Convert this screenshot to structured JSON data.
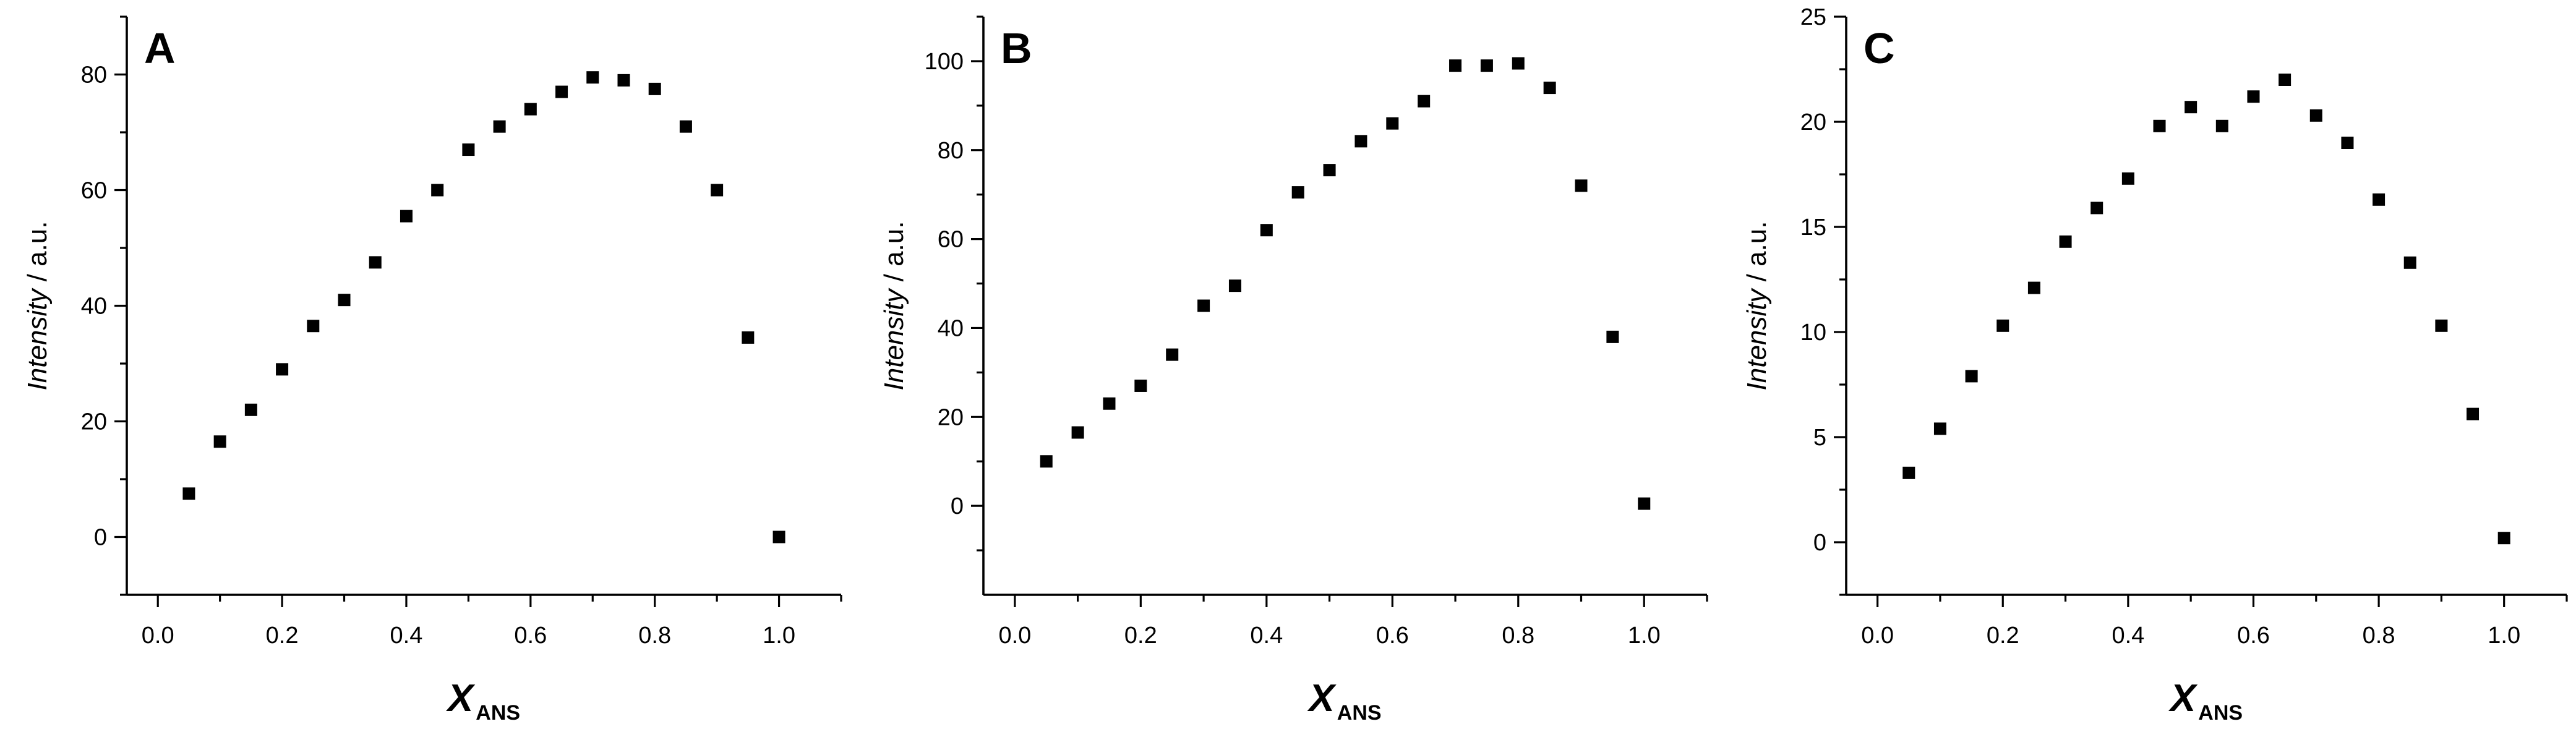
{
  "chart_data": [
    {
      "type": "scatter",
      "panel_label": "A",
      "ylabel_italic": "Intensity",
      "ylabel_rest": " / a.u.",
      "xlabel_main": "X",
      "xlabel_sub": "ANS",
      "xlim": [
        -0.05,
        1.1
      ],
      "ylim": [
        -10,
        90
      ],
      "xticks": [
        0.0,
        0.2,
        0.4,
        0.6,
        0.8,
        1.0
      ],
      "xtick_labels": [
        "0.0",
        "0.2",
        "0.4",
        "0.6",
        "0.8",
        "1.0"
      ],
      "yticks": [
        0,
        20,
        40,
        60,
        80
      ],
      "ytick_labels": [
        "0",
        "20",
        "40",
        "60",
        "80"
      ],
      "x": [
        0.05,
        0.1,
        0.15,
        0.2,
        0.25,
        0.3,
        0.35,
        0.4,
        0.45,
        0.5,
        0.55,
        0.6,
        0.65,
        0.7,
        0.75,
        0.8,
        0.85,
        0.9,
        0.95,
        1.0
      ],
      "y": [
        7.5,
        16.5,
        22,
        29,
        36.5,
        41,
        47.5,
        55.5,
        60,
        67,
        71,
        74,
        77,
        79.5,
        79,
        77.5,
        71,
        60,
        34.5,
        0
      ],
      "marker_color": "#000000",
      "grid": false
    },
    {
      "type": "scatter",
      "panel_label": "B",
      "ylabel_italic": "Intensity",
      "ylabel_rest": " / a.u.",
      "xlabel_main": "X",
      "xlabel_sub": "ANS",
      "xlim": [
        -0.05,
        1.1
      ],
      "ylim": [
        -20,
        110
      ],
      "xticks": [
        0.0,
        0.2,
        0.4,
        0.6,
        0.8,
        1.0
      ],
      "xtick_labels": [
        "0.0",
        "0.2",
        "0.4",
        "0.6",
        "0.8",
        "1.0"
      ],
      "yticks": [
        0,
        20,
        40,
        60,
        80,
        100
      ],
      "ytick_labels": [
        "0",
        "20",
        "40",
        "60",
        "80",
        "100"
      ],
      "x": [
        0.05,
        0.1,
        0.15,
        0.2,
        0.25,
        0.3,
        0.35,
        0.4,
        0.45,
        0.5,
        0.55,
        0.6,
        0.65,
        0.7,
        0.75,
        0.8,
        0.85,
        0.9,
        0.95,
        1.0
      ],
      "y": [
        10,
        16.5,
        23,
        27,
        34,
        45,
        49.5,
        62,
        70.5,
        75.5,
        82,
        86,
        91,
        99,
        99,
        99.5,
        94,
        72,
        38,
        0.5
      ],
      "marker_color": "#000000",
      "grid": false
    },
    {
      "type": "scatter",
      "panel_label": "C",
      "ylabel_italic": "Intensity",
      "ylabel_rest": " / a.u.",
      "xlabel_main": "X",
      "xlabel_sub": "ANS",
      "xlim": [
        -0.05,
        1.1
      ],
      "ylim": [
        -2.5,
        25
      ],
      "xticks": [
        0.0,
        0.2,
        0.4,
        0.6,
        0.8,
        1.0
      ],
      "xtick_labels": [
        "0.0",
        "0.2",
        "0.4",
        "0.6",
        "0.8",
        "1.0"
      ],
      "yticks": [
        0,
        5,
        10,
        15,
        20,
        25
      ],
      "ytick_labels": [
        "0",
        "5",
        "10",
        "15",
        "20",
        "25"
      ],
      "x": [
        0.05,
        0.1,
        0.15,
        0.2,
        0.25,
        0.3,
        0.35,
        0.4,
        0.45,
        0.5,
        0.55,
        0.6,
        0.65,
        0.7,
        0.75,
        0.8,
        0.85,
        0.9,
        0.95,
        1.0
      ],
      "y": [
        3.3,
        5.4,
        7.9,
        10.3,
        12.1,
        14.3,
        15.9,
        17.3,
        19.8,
        20.7,
        19.8,
        21.2,
        22.0,
        20.3,
        19.0,
        16.3,
        13.3,
        10.3,
        6.1,
        0.2
      ],
      "marker_color": "#000000",
      "grid": false
    }
  ]
}
